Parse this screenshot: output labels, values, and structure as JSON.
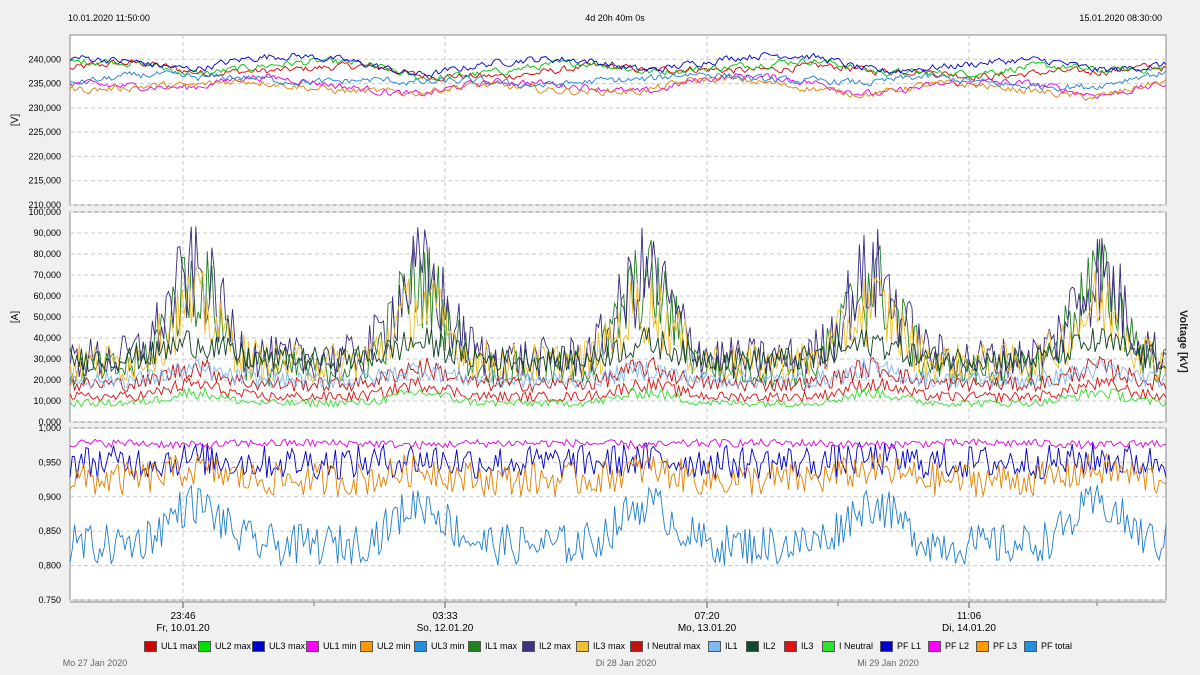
{
  "header": {
    "start": "10.01.2020 11:50:00",
    "duration": "4d 20h 40m 0s",
    "end": "15.01.2020 08:30:00"
  },
  "right_edge_text": "Voltage [kV]",
  "chart_data": [
    {
      "type": "line",
      "panel": "voltage",
      "ylabel": "[V]",
      "ylim": [
        210000,
        245000
      ],
      "yticks": [
        "210,000",
        "215,000",
        "220,000",
        "225,000",
        "230,000",
        "235,000",
        "240,000"
      ],
      "ytick_values": [
        210000,
        215000,
        220000,
        225000,
        230000,
        235000,
        240000
      ],
      "series": [
        {
          "name": "UL1 max",
          "color": "#d40000",
          "base": 238000,
          "offset": 0
        },
        {
          "name": "UL2 max",
          "color": "#00c000",
          "base": 238500,
          "offset": 0
        },
        {
          "name": "UL3 max",
          "color": "#0000cc",
          "base": 239500,
          "offset": 0
        },
        {
          "name": "UL1 min",
          "color": "#e000e0",
          "base": 235000,
          "offset": 0
        },
        {
          "name": "UL2 min",
          "color": "#e08000",
          "base": 234500,
          "offset": 0
        },
        {
          "name": "UL3 min",
          "color": "#1e7fd0",
          "base": 236000,
          "offset": 0
        }
      ]
    },
    {
      "type": "line",
      "panel": "current",
      "ylabel": "[A]",
      "ylim": [
        0,
        100000
      ],
      "yticks": [
        "0,000",
        "10,000",
        "20,000",
        "30,000",
        "40,000",
        "50,000",
        "60,000",
        "70,000",
        "80,000",
        "90,000",
        "100,000"
      ],
      "ytick_values": [
        0,
        10000,
        20000,
        30000,
        40000,
        50000,
        60000,
        70000,
        80000,
        90000,
        100000
      ],
      "series": [
        {
          "name": "IL1 max",
          "color": "#208020",
          "day": 66000,
          "night": 25000
        },
        {
          "name": "IL2 max",
          "color": "#3a2a80",
          "day": 70000,
          "night": 30000
        },
        {
          "name": "IL3 max",
          "color": "#f0c030",
          "day": 55000,
          "night": 28000
        },
        {
          "name": "I Neutral max",
          "color": "#c01010",
          "day": 26000,
          "night": 18000
        },
        {
          "name": "IL1",
          "color": "#80b8f0",
          "day": 25000,
          "night": 20000
        },
        {
          "name": "IL2",
          "color": "#104020",
          "day": 38000,
          "night": 30000
        },
        {
          "name": "IL3",
          "color": "#e01010",
          "day": 18000,
          "night": 12000
        },
        {
          "name": "I Neutral",
          "color": "#30e030",
          "day": 14000,
          "night": 9000
        }
      ]
    },
    {
      "type": "line",
      "panel": "power_factor",
      "ylabel": "",
      "ylim": [
        0.75,
        1.0
      ],
      "yticks": [
        "0.750",
        "0,800",
        "0,850",
        "0,900",
        "0,950",
        "1,000"
      ],
      "ytick_values": [
        0.75,
        0.8,
        0.85,
        0.9,
        0.95,
        1.0
      ],
      "series": [
        {
          "name": "PF L1",
          "color": "#0000cc",
          "day": 0.955,
          "night": 0.95
        },
        {
          "name": "PF L2",
          "color": "#e000e0",
          "day": 0.975,
          "night": 0.978
        },
        {
          "name": "PF L3",
          "color": "#e08000",
          "day": 0.94,
          "night": 0.925
        },
        {
          "name": "PF total",
          "color": "#1e7fd0",
          "day": 0.89,
          "night": 0.83
        }
      ]
    }
  ],
  "xaxis": {
    "labels": [
      {
        "time": "23:46",
        "date": "Fr, 10.01.20"
      },
      {
        "time": "03:33",
        "date": "So, 12.01.20"
      },
      {
        "time": "07:20",
        "date": "Mo, 13.01.20"
      },
      {
        "time": "11:06",
        "date": "Di, 14.01.20"
      }
    ],
    "bottom_dates": [
      "Mo 27 Jan 2020",
      "Di 28 Jan 2020",
      "Mi 29 Jan 2020"
    ]
  },
  "legend": [
    {
      "name": "UL1 max",
      "color": "#d40000"
    },
    {
      "name": "UL2 max",
      "color": "#00e000"
    },
    {
      "name": "UL3 max",
      "color": "#0000cc"
    },
    {
      "name": "UL1 min",
      "color": "#ff00ff"
    },
    {
      "name": "UL2 min",
      "color": "#ff9900"
    },
    {
      "name": "UL3 min",
      "color": "#2090e0"
    },
    {
      "name": "IL1 max",
      "color": "#208020"
    },
    {
      "name": "IL2 max",
      "color": "#403080"
    },
    {
      "name": "IL3 max",
      "color": "#f0c030"
    },
    {
      "name": "I Neutral max",
      "color": "#c01010"
    },
    {
      "name": "IL1",
      "color": "#80b8f0"
    },
    {
      "name": "IL2",
      "color": "#104830"
    },
    {
      "name": "IL3",
      "color": "#e01010"
    },
    {
      "name": "I Neutral",
      "color": "#30e030"
    },
    {
      "name": "PF L1",
      "color": "#0000cc"
    },
    {
      "name": "PF L2",
      "color": "#ff00ff"
    },
    {
      "name": "PF L3",
      "color": "#ff9900"
    },
    {
      "name": "PF total",
      "color": "#2090e0"
    }
  ]
}
